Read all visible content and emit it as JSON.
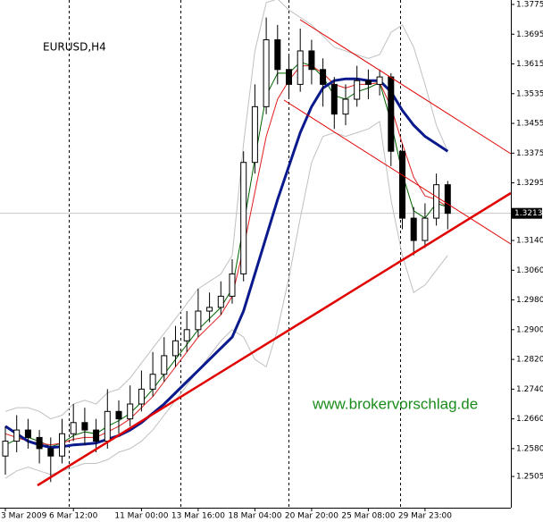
{
  "chart_data": {
    "type": "candlestick",
    "title": "EURUSD,H4",
    "annotation": "www.brokervorschlag.de",
    "categories": [
      "3 Mar 2009",
      null,
      null,
      null,
      null,
      null,
      "6 Mar 12:00",
      null,
      null,
      null,
      null,
      null,
      "11 Mar 00:00",
      null,
      null,
      null,
      null,
      "13 Mar 16:00",
      null,
      null,
      null,
      null,
      "18 Mar 04:00",
      null,
      null,
      null,
      null,
      "20 Mar 20:00",
      null,
      null,
      null,
      null,
      "25 Mar 08:00",
      null,
      null,
      null,
      null,
      "29 Mar 23:00",
      null,
      null
    ],
    "open": [
      1.256,
      1.26,
      1.263,
      1.261,
      1.258,
      1.256,
      1.262,
      1.265,
      1.263,
      1.26,
      1.268,
      1.266,
      1.27,
      1.274,
      1.278,
      1.283,
      1.287,
      1.29,
      1.295,
      1.296,
      1.299,
      1.305,
      1.335,
      1.35,
      1.368,
      1.36,
      1.356,
      1.365,
      1.36,
      1.356,
      1.348,
      1.352,
      1.357,
      1.356,
      1.358,
      1.338,
      1.32,
      1.314,
      1.32,
      1.329
    ],
    "high": [
      1.264,
      1.267,
      1.266,
      1.263,
      1.261,
      1.266,
      1.27,
      1.269,
      1.266,
      1.274,
      1.271,
      1.275,
      1.279,
      1.284,
      1.288,
      1.291,
      1.295,
      1.301,
      1.3,
      1.303,
      1.309,
      1.338,
      1.356,
      1.374,
      1.372,
      1.364,
      1.371,
      1.368,
      1.363,
      1.358,
      1.356,
      1.361,
      1.36,
      1.36,
      1.359,
      1.34,
      1.323,
      1.324,
      1.332,
      1.33
    ],
    "low": [
      1.251,
      1.257,
      1.258,
      1.254,
      1.249,
      1.254,
      1.26,
      1.259,
      1.257,
      1.258,
      1.262,
      1.264,
      1.268,
      1.272,
      1.276,
      1.28,
      1.284,
      1.288,
      1.292,
      1.294,
      1.297,
      1.303,
      1.332,
      1.348,
      1.356,
      1.352,
      1.354,
      1.356,
      1.35,
      1.344,
      1.345,
      1.35,
      1.352,
      1.353,
      1.334,
      1.317,
      1.31,
      1.312,
      1.318,
      1.317
    ],
    "close": [
      1.26,
      1.263,
      1.261,
      1.258,
      1.256,
      1.262,
      1.265,
      1.263,
      1.26,
      1.268,
      1.266,
      1.27,
      1.274,
      1.278,
      1.283,
      1.287,
      1.29,
      1.295,
      1.296,
      1.299,
      1.305,
      1.335,
      1.35,
      1.368,
      1.36,
      1.356,
      1.365,
      1.36,
      1.356,
      1.348,
      1.352,
      1.357,
      1.356,
      1.358,
      1.338,
      1.32,
      1.314,
      1.32,
      1.329,
      1.3213
    ],
    "series": [
      {
        "color": "#c0c0c0",
        "line_width": 1,
        "values": [
          1.268,
          1.269,
          1.269,
          1.268,
          1.266,
          1.267,
          1.27,
          1.271,
          1.27,
          1.273,
          1.274,
          1.277,
          1.281,
          1.285,
          1.289,
          1.293,
          1.297,
          1.301,
          1.303,
          1.305,
          1.31,
          1.34,
          1.365,
          1.378,
          1.379,
          1.376,
          1.374,
          1.372,
          1.369,
          1.366,
          1.365,
          1.364,
          1.363,
          1.364,
          1.37,
          1.372,
          1.366,
          1.356,
          1.345,
          1.338
        ]
      },
      {
        "color": "#c0c0c0",
        "line_width": 1,
        "values": [
          1.25,
          1.252,
          1.253,
          1.252,
          1.251,
          1.252,
          1.253,
          1.254,
          1.254,
          1.255,
          1.257,
          1.258,
          1.26,
          1.263,
          1.267,
          1.271,
          1.275,
          1.279,
          1.283,
          1.287,
          1.29,
          1.288,
          1.282,
          1.28,
          1.29,
          1.304,
          1.32,
          1.335,
          1.342,
          1.343,
          1.342,
          1.343,
          1.344,
          1.346,
          1.325,
          1.31,
          1.3,
          1.302,
          1.306,
          1.31
        ]
      },
      {
        "color": "#006400",
        "line_width": 1,
        "values": [
          1.259,
          1.2605,
          1.261,
          1.26,
          1.2585,
          1.2595,
          1.2615,
          1.2625,
          1.262,
          1.264,
          1.2655,
          1.2675,
          1.2705,
          1.274,
          1.278,
          1.282,
          1.286,
          1.29,
          1.293,
          1.296,
          1.301,
          1.318,
          1.336,
          1.353,
          1.359,
          1.359,
          1.362,
          1.361,
          1.358,
          1.353,
          1.352,
          1.354,
          1.355,
          1.3565,
          1.346,
          1.332,
          1.322,
          1.32,
          1.324,
          1.323
        ]
      },
      {
        "color": "#e02020",
        "line_width": 1,
        "values": [
          1.262,
          1.261,
          1.26,
          1.2595,
          1.259,
          1.2595,
          1.2605,
          1.261,
          1.261,
          1.2625,
          1.264,
          1.266,
          1.269,
          1.272,
          1.276,
          1.28,
          1.284,
          1.288,
          1.291,
          1.294,
          1.299,
          1.312,
          1.327,
          1.342,
          1.352,
          1.357,
          1.361,
          1.361,
          1.359,
          1.356,
          1.355,
          1.356,
          1.356,
          1.3565,
          1.35,
          1.34,
          1.331,
          1.326,
          1.325,
          1.323
        ]
      },
      {
        "color": "#0a1a8c",
        "line_width": 3,
        "values": [
          1.264,
          1.262,
          1.26,
          1.259,
          1.2583,
          1.2585,
          1.259,
          1.2592,
          1.2595,
          1.2605,
          1.2615,
          1.263,
          1.265,
          1.2675,
          1.27,
          1.273,
          1.276,
          1.279,
          1.282,
          1.285,
          1.288,
          1.295,
          1.305,
          1.315,
          1.325,
          1.334,
          1.343,
          1.35,
          1.355,
          1.357,
          1.3575,
          1.3575,
          1.357,
          1.357,
          1.354,
          1.349,
          1.345,
          1.342,
          1.34,
          1.338
        ]
      }
    ],
    "last_price": 1.3213,
    "ylim": [
      1.2421,
      1.3787
    ],
    "yticks": [
      1.3775,
      1.3695,
      1.3615,
      1.3535,
      1.3455,
      1.3375,
      1.3295,
      {
        "value": 1.314,
        "label": "1.3140"
      },
      {
        "value": 1.306,
        "label": "1.3060"
      },
      {
        "value": 1.298,
        "label": "1.2980"
      },
      {
        "value": 1.29,
        "label": "1.2900"
      },
      {
        "value": 1.282,
        "label": "1.2820"
      },
      {
        "value": 1.274,
        "label": "1.2740"
      },
      {
        "value": 1.266,
        "label": "1.2660"
      },
      {
        "value": 1.258,
        "label": "1.2580"
      },
      1.2505
    ]
  }
}
